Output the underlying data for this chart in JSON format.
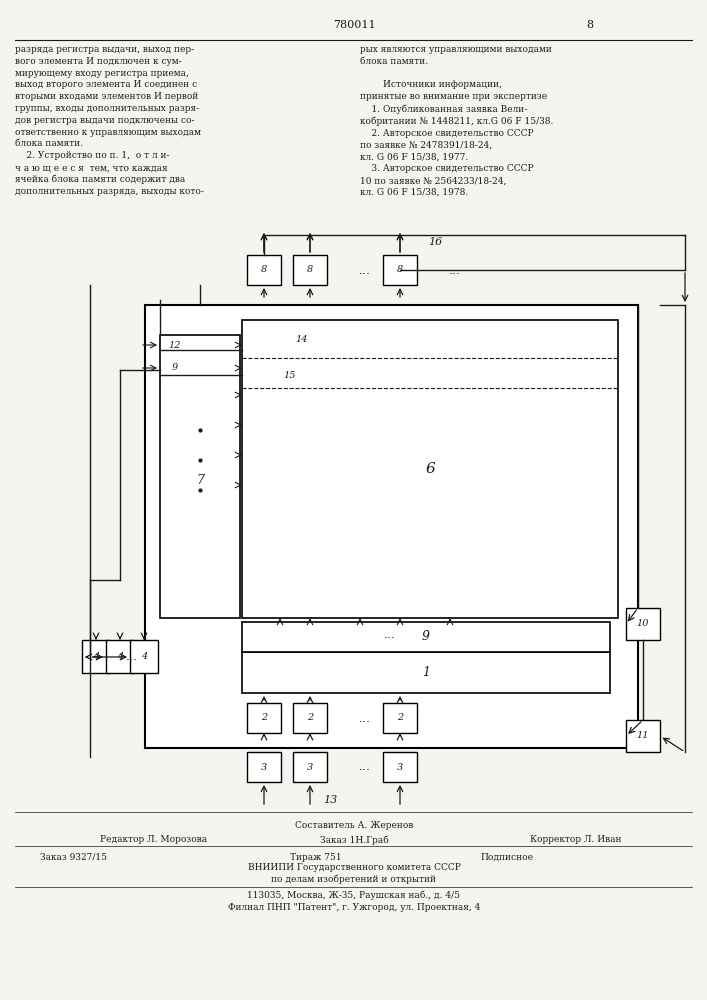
{
  "page_number": "780011",
  "page_right": "8",
  "background_color": "#f5f5f0",
  "text_color": "#1a1a1a",
  "top_text_left": "разряда регистра выдачи, выход пер-\nвого элемента И подключен к сум-\nмирующему входу регистра приема,\nвыход второго элемента И соединен с\nвторыми входами элементов И первой\nгруппы, входы дополнительных разря-\nдов регистра выдачи подключены со-\nответственно к управляющим выходам\nблока памяти.\n    2. Устройство по п. 1,  о т л и-\nч а ю щ е е с я  тем, что каждая\nячейка блока памяти содержит два\nдополнительных разряда, выходы кото-",
  "top_text_right": "рых являются управляющими выходами\nблока памяти.\n\n        Источники информации,\nпринятые во внимание при экспертизе\n    1. Опубликованная заявка Вели-\nкобритании № 1448211, кл.G 06 F 15/38.\n    2. Авторское свидетельство СССР\nпо заявке № 2478391/18-24,\nкл. G 06 F 15/38, 1977.\n    3. Авторское свидетельство СССР\n10 по заявке № 2564233/18-24,\nкл. G 06 F 15/38, 1978.",
  "bottom_text": "Составитель А. Жеренов\nРедактор Л. Морозова     Заказ 1Н.Граб       Корректор Л. Иван\nЗаказ 9327/15                Тираж 751              Подписное\n         ВНИИПИ Государственного комитета СССР\n              по делам изобретений и открытий\n          113035, Москва, Ж-35, Раушская наб., д. 4/5\n      Филиал ПНП \"Патент\", г. Ужгород, ул. Проектная, 4"
}
